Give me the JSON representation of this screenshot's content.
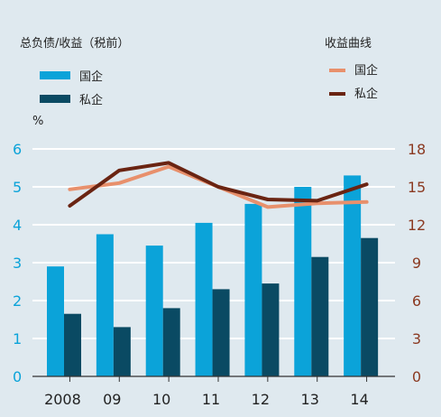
{
  "chart_data": {
    "type": "bar+line",
    "title_left": "总负债/收益（税前）",
    "title_right": "收益曲线",
    "left_unit": "%",
    "categories": [
      "2008",
      "09",
      "10",
      "11",
      "12",
      "13",
      "14"
    ],
    "bar_series": [
      {
        "name": "国企",
        "color": "#0ba3d9",
        "values": [
          2.9,
          3.75,
          3.45,
          4.05,
          4.55,
          5.0,
          5.3
        ]
      },
      {
        "name": "私企",
        "color": "#0a4a63",
        "values": [
          1.65,
          1.3,
          1.8,
          2.3,
          2.45,
          3.15,
          3.65
        ]
      }
    ],
    "line_series": [
      {
        "name": "国企",
        "color": "#e8906c",
        "values": [
          14.8,
          15.3,
          16.6,
          15.0,
          13.4,
          13.7,
          13.8
        ]
      },
      {
        "name": "私企",
        "color": "#6a2412",
        "values": [
          13.5,
          16.3,
          16.9,
          15.0,
          14.0,
          13.9,
          15.2
        ]
      }
    ],
    "left_axis": {
      "ylim": [
        0,
        6
      ],
      "ticks": [
        "0",
        "1",
        "2",
        "3",
        "4",
        "5",
        "6"
      ],
      "color": "#0ba3d9"
    },
    "right_axis": {
      "ylim": [
        0,
        18
      ],
      "ticks": [
        "0",
        "3",
        "6",
        "9",
        "12",
        "15",
        "18"
      ],
      "color": "#8b3a22"
    },
    "grid": true,
    "legend_placement": "top"
  }
}
